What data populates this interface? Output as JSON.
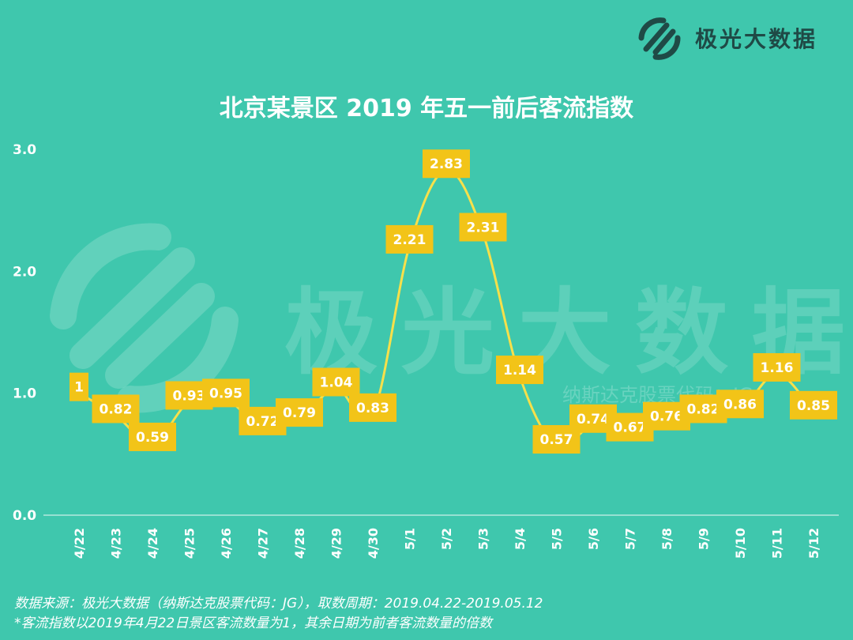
{
  "brand": {
    "name": "极光大数据"
  },
  "watermark": {
    "main": "极光大数据",
    "sub": "纳斯达克股票代码：JG"
  },
  "footer": {
    "source": "数据来源：极光大数据（纳斯达克股票代码：JG），取数周期：2019.04.22-2019.05.12",
    "note": "*客流指数以2019年4月22日景区客流数量为1，其余日期为前者客流数量的倍数"
  },
  "colors": {
    "background": "#3fc7ad",
    "line": "#f7e04a",
    "label_bg": "#f2c418",
    "text": "#ffffff",
    "logo": "#1f4a46"
  },
  "chart_data": {
    "type": "line",
    "title": "北京某景区 2019 年五一前后客流指数",
    "xlabel": "",
    "ylabel": "",
    "ylim": [
      0,
      3
    ],
    "yticks": [
      "0.0",
      "1.0",
      "2.0",
      "3.0"
    ],
    "grid": false,
    "categories": [
      "4/22",
      "4/23",
      "4/24",
      "4/25",
      "4/26",
      "4/27",
      "4/28",
      "4/29",
      "4/30",
      "5/1",
      "5/2",
      "5/3",
      "5/4",
      "5/5",
      "5/6",
      "5/7",
      "5/8",
      "5/9",
      "5/10",
      "5/11",
      "5/12"
    ],
    "values": [
      1,
      0.82,
      0.59,
      0.93,
      0.95,
      0.72,
      0.79,
      1.04,
      0.83,
      2.21,
      2.83,
      2.31,
      1.14,
      0.57,
      0.74,
      0.67,
      0.76,
      0.82,
      0.86,
      1.16,
      0.85
    ],
    "labels": [
      "1",
      "0.82",
      "0.59",
      "0.93",
      "0.95",
      "0.72",
      "0.79",
      "1.04",
      "0.83",
      "2.21",
      "2.83",
      "2.31",
      "1.14",
      "0.57",
      "0.74",
      "0.67",
      "0.76",
      "0.82",
      "0.86",
      "1.16",
      "0.85"
    ]
  }
}
